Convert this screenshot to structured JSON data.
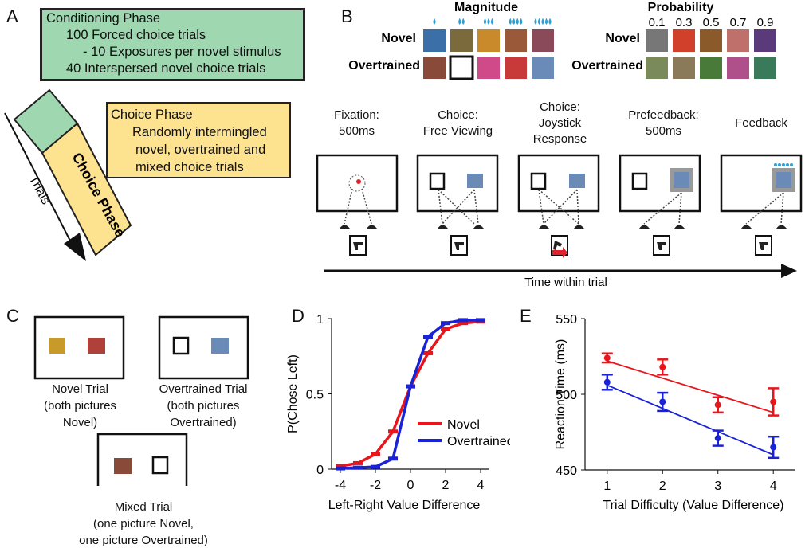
{
  "panels": {
    "A": "A",
    "B": "B",
    "C": "C",
    "D": "D",
    "E": "E"
  },
  "panel_a": {
    "conditioning": {
      "title": "Conditioning Phase",
      "line1": "100 Forced choice trials",
      "line2": "- 10 Exposures per novel stimulus",
      "line3": "40 Interspersed novel choice trials"
    },
    "choice_box": {
      "title": "Choice Phase",
      "line1": "Randomly intermingled",
      "line2": "novel,  overtrained and",
      "line3": "mixed choice trials"
    },
    "bar_label": "Choice Phase",
    "axis_label": "Trials"
  },
  "panel_b": {
    "magnitude_title": "Magnitude",
    "probability_title": "Probability",
    "row_novel": "Novel",
    "row_overtrained": "Overtrained",
    "drop_counts": [
      1,
      2,
      3,
      4,
      5
    ],
    "probabilities": [
      "0.1",
      "0.3",
      "0.5",
      "0.7",
      "0.9"
    ],
    "steps": [
      {
        "line1": "Fixation:",
        "line2": "500ms"
      },
      {
        "line1": "Choice:",
        "line2": "Free Viewing"
      },
      {
        "line1": "Choice:",
        "line2": "Joystick",
        "line3": "Response"
      },
      {
        "line1": "Prefeedback:",
        "line2": "500ms"
      },
      {
        "line1": "Feedback",
        "line2": ""
      }
    ],
    "time_axis": "Time within trial"
  },
  "panel_c": {
    "novel": {
      "l1": "Novel Trial",
      "l2": "(both pictures",
      "l3": "Novel)"
    },
    "overtrained": {
      "l1": "Overtrained Trial",
      "l2": "(both pictures",
      "l3": "Overtrained)"
    },
    "mixed": {
      "l1": "Mixed Trial",
      "l2": "(one picture Novel,",
      "l3": "one picture Overtrained)"
    }
  },
  "colors": {
    "novel": "#e8161c",
    "overtrained": "#1a22d6",
    "green": "#9fd7b0",
    "yellow": "#fde28f"
  },
  "chart_data": [
    {
      "type": "line",
      "xlabel": "Left-Right Value Difference",
      "ylabel": "P(Chose Left)",
      "xlim": [
        -4.5,
        4.5
      ],
      "ylim": [
        0,
        1
      ],
      "xticks": [
        "-4",
        "-2",
        "0",
        "2",
        "4"
      ],
      "yticks": [
        "0",
        "0.5",
        "1"
      ],
      "x": [
        -4,
        -3,
        -2,
        -1,
        0,
        1,
        2,
        3,
        4
      ],
      "series": [
        {
          "name": "Novel",
          "color": "#e8161c",
          "values": [
            0.02,
            0.04,
            0.1,
            0.25,
            0.55,
            0.77,
            0.93,
            0.97,
            0.98
          ]
        },
        {
          "name": "Overtrained",
          "color": "#1a22d6",
          "values": [
            0.005,
            0.01,
            0.015,
            0.07,
            0.55,
            0.88,
            0.97,
            0.99,
            0.99
          ]
        }
      ],
      "legend": "bottom-right"
    },
    {
      "type": "line",
      "xlabel": "Trial Difficulty (Value Difference)",
      "ylabel": "Reaction Time (ms)",
      "xlim": [
        0.6,
        4.4
      ],
      "ylim": [
        450,
        550
      ],
      "xticks": [
        "1",
        "2",
        "3",
        "4"
      ],
      "yticks": [
        "450",
        "500",
        "550"
      ],
      "x": [
        1,
        2,
        3,
        4
      ],
      "series": [
        {
          "name": "Novel",
          "color": "#e8161c",
          "values": [
            524,
            518,
            493,
            495
          ],
          "errors": [
            3,
            5,
            5,
            9
          ],
          "fit": [
            522,
            510,
            499,
            488
          ]
        },
        {
          "name": "Overtrained",
          "color": "#1a22d6",
          "values": [
            508,
            495,
            471,
            465
          ],
          "errors": [
            5,
            6,
            5,
            7
          ],
          "fit": [
            506,
            491,
            475,
            460
          ]
        }
      ]
    }
  ]
}
